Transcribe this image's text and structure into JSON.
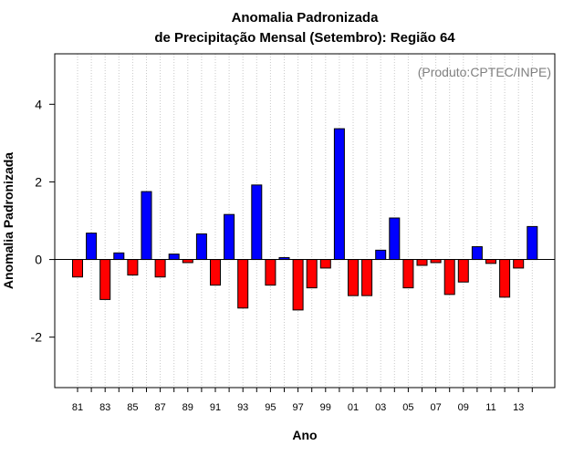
{
  "chart_data": {
    "type": "bar",
    "title_line1": "Anomalia Padronizada",
    "title_line2": "de Precipitação Mensal (Setembro): Região 64",
    "xlabel": "Ano",
    "ylabel": "Anomalia Padronizada",
    "credit": "(Produto:CPTEC/INPE)",
    "ylim": [
      -3.3,
      5.3
    ],
    "yticks": [
      -2,
      0,
      2,
      4
    ],
    "ytick_labels": [
      "-2",
      "0",
      "2",
      "4"
    ],
    "xtick_labels": [
      "81",
      "83",
      "85",
      "87",
      "89",
      "91",
      "93",
      "95",
      "97",
      "99",
      "01",
      "03",
      "05",
      "07",
      "09",
      "11",
      "13"
    ],
    "categories": [
      "1981",
      "1982",
      "1983",
      "1984",
      "1985",
      "1986",
      "1987",
      "1988",
      "1989",
      "1990",
      "1991",
      "1992",
      "1993",
      "1994",
      "1995",
      "1996",
      "1997",
      "1998",
      "1999",
      "2000",
      "2001",
      "2002",
      "2003",
      "2004",
      "2005",
      "2006",
      "2007",
      "2008",
      "2009",
      "2010",
      "2011",
      "2012",
      "2013",
      "2014"
    ],
    "values": [
      -0.45,
      0.68,
      -1.03,
      0.17,
      -0.4,
      1.75,
      -0.45,
      0.14,
      -0.08,
      0.66,
      -0.66,
      1.16,
      -1.25,
      1.92,
      -0.66,
      0.05,
      -1.3,
      -0.73,
      -0.22,
      3.37,
      -0.93,
      -0.93,
      0.24,
      1.07,
      -0.73,
      -0.15,
      -0.08,
      -0.9,
      -0.58,
      0.33,
      -0.1,
      -0.97,
      -0.22,
      0.85
    ],
    "positive_color": "#0000ff",
    "negative_color": "#ff0000"
  }
}
